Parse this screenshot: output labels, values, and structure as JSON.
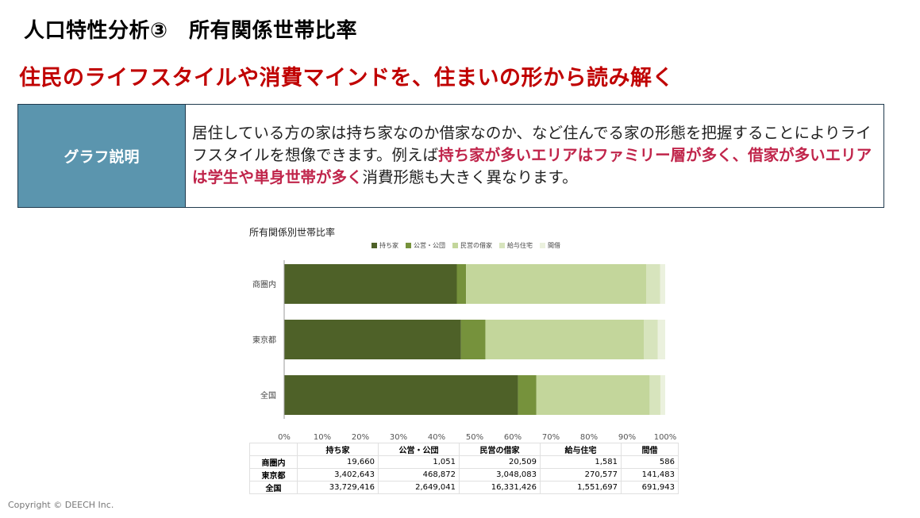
{
  "header": {
    "title": "人口特性分析③　所有関係世帯比率",
    "subtitle": "住民のライフスタイルや消費マインドを、住まいの形から読み解く"
  },
  "description": {
    "label": "グラフ説明",
    "text_1": "居住している方の家は持ち家なのか借家なのか、など住んでる家の形態を把握することによりライフスタイルを想像できます。例えば",
    "highlight": "持ち家が多いエリアはファミリー層が多く、借家が多いエリアは学生や単身世帯が多く",
    "text_2": "消費形態も大きく異なります。"
  },
  "colors": {
    "持ち家": "#4e6128",
    "公営・公団": "#76923c",
    "民営の借家": "#c3d69b",
    "給与住宅": "#d7e4bd",
    "間借": "#ebf1de"
  },
  "chart_data": {
    "type": "bar",
    "orientation": "horizontal",
    "stacked": "percent",
    "title": "所有関係別世帯比率",
    "categories": [
      "商圏内",
      "東京都",
      "全国"
    ],
    "series": [
      {
        "name": "持ち家",
        "values": [
          19660,
          3402643,
          33729416
        ]
      },
      {
        "name": "公営・公団",
        "values": [
          1051,
          468872,
          2649041
        ]
      },
      {
        "name": "民営の借家",
        "values": [
          20509,
          3048083,
          16331426
        ]
      },
      {
        "name": "給与住宅",
        "values": [
          1581,
          270577,
          1551697
        ]
      },
      {
        "name": "間借",
        "values": [
          586,
          141483,
          691943
        ]
      }
    ],
    "x_ticks": [
      "0%",
      "10%",
      "20%",
      "30%",
      "40%",
      "50%",
      "60%",
      "70%",
      "80%",
      "90%",
      "100%"
    ],
    "xlim": [
      0,
      100
    ],
    "legend": "top",
    "grid": false
  },
  "table": {
    "headers": [
      "持ち家",
      "公営・公団",
      "民営の借家",
      "給与住宅",
      "間借"
    ],
    "rows": [
      {
        "label": "商圏内",
        "cells": [
          "19,660",
          "1,051",
          "20,509",
          "1,581",
          "586"
        ]
      },
      {
        "label": "東京都",
        "cells": [
          "3,402,643",
          "468,872",
          "3,048,083",
          "270,577",
          "141,483"
        ]
      },
      {
        "label": "全国",
        "cells": [
          "33,729,416",
          "2,649,041",
          "16,331,426",
          "1,551,697",
          "691,943"
        ]
      }
    ]
  },
  "footer": {
    "copyright": "Copyright © DEECH Inc."
  }
}
